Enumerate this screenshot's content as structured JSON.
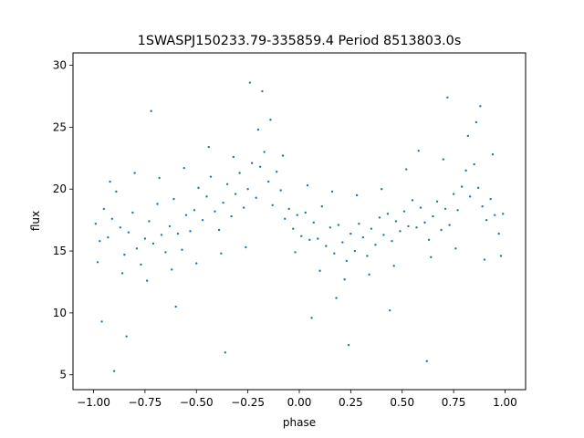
{
  "chart_data": {
    "type": "scatter",
    "title": "1SWASPJ150233.79-335859.4 Period 8513803.0s",
    "xlabel": "phase",
    "ylabel": "flux",
    "xlim": [
      -1.1,
      1.1
    ],
    "ylim": [
      3.8,
      31.0
    ],
    "xticks": [
      -1.0,
      -0.75,
      -0.5,
      -0.25,
      0.0,
      0.25,
      0.5,
      0.75,
      1.0
    ],
    "xtick_labels": [
      "−1.00",
      "−0.75",
      "−0.50",
      "−0.25",
      "0.00",
      "0.25",
      "0.50",
      "0.75",
      "1.00"
    ],
    "yticks": [
      5,
      10,
      15,
      20,
      25,
      30
    ],
    "ytick_labels": [
      "5",
      "10",
      "15",
      "20",
      "25",
      "30"
    ],
    "grid": false,
    "marker_color": "#1f77b4",
    "series": [
      {
        "points": [
          [
            -0.99,
            17.2
          ],
          [
            -0.97,
            15.8
          ],
          [
            -0.95,
            18.4
          ],
          [
            -0.93,
            16.1
          ],
          [
            -0.91,
            17.6
          ],
          [
            -0.89,
            19.8
          ],
          [
            -0.87,
            16.9
          ],
          [
            -0.85,
            14.7
          ],
          [
            -0.83,
            16.5
          ],
          [
            -0.81,
            18.1
          ],
          [
            -0.79,
            15.2
          ],
          [
            -0.77,
            13.9
          ],
          [
            -0.75,
            16.0
          ],
          [
            -0.73,
            17.4
          ],
          [
            -0.71,
            15.6
          ],
          [
            -0.69,
            18.8
          ],
          [
            -0.67,
            16.3
          ],
          [
            -0.65,
            14.9
          ],
          [
            -0.63,
            17.0
          ],
          [
            -0.61,
            19.2
          ],
          [
            -0.59,
            16.4
          ],
          [
            -0.57,
            15.1
          ],
          [
            -0.55,
            17.9
          ],
          [
            -0.53,
            16.6
          ],
          [
            -0.51,
            18.3
          ],
          [
            -0.49,
            20.1
          ],
          [
            -0.47,
            17.5
          ],
          [
            -0.45,
            19.4
          ],
          [
            -0.43,
            21.0
          ],
          [
            -0.41,
            18.2
          ],
          [
            -0.39,
            16.7
          ],
          [
            -0.37,
            18.9
          ],
          [
            -0.35,
            20.4
          ],
          [
            -0.33,
            17.8
          ],
          [
            -0.31,
            19.6
          ],
          [
            -0.29,
            21.3
          ],
          [
            -0.27,
            18.5
          ],
          [
            -0.25,
            20.0
          ],
          [
            -0.23,
            22.1
          ],
          [
            -0.21,
            19.3
          ],
          [
            -0.19,
            21.8
          ],
          [
            -0.17,
            23.0
          ],
          [
            -0.15,
            20.6
          ],
          [
            -0.13,
            18.7
          ],
          [
            -0.11,
            21.4
          ],
          [
            -0.09,
            19.9
          ],
          [
            -0.07,
            17.6
          ],
          [
            -0.05,
            18.4
          ],
          [
            -0.03,
            16.8
          ],
          [
            -0.01,
            17.9
          ],
          [
            0.01,
            16.2
          ],
          [
            0.03,
            18.1
          ],
          [
            0.05,
            15.9
          ],
          [
            0.07,
            17.3
          ],
          [
            0.09,
            16.0
          ],
          [
            0.11,
            18.6
          ],
          [
            0.13,
            15.4
          ],
          [
            0.15,
            16.9
          ],
          [
            0.17,
            14.8
          ],
          [
            0.19,
            17.1
          ],
          [
            0.21,
            15.7
          ],
          [
            0.23,
            14.2
          ],
          [
            0.25,
            16.4
          ],
          [
            0.27,
            15.0
          ],
          [
            0.29,
            17.2
          ],
          [
            0.31,
            16.1
          ],
          [
            0.33,
            14.6
          ],
          [
            0.35,
            16.8
          ],
          [
            0.37,
            15.5
          ],
          [
            0.39,
            17.7
          ],
          [
            0.41,
            16.3
          ],
          [
            0.43,
            18.0
          ],
          [
            0.45,
            15.8
          ],
          [
            0.47,
            17.4
          ],
          [
            0.49,
            16.6
          ],
          [
            0.51,
            18.2
          ],
          [
            0.53,
            17.0
          ],
          [
            0.55,
            19.1
          ],
          [
            0.57,
            16.9
          ],
          [
            0.59,
            18.5
          ],
          [
            0.61,
            17.3
          ],
          [
            0.63,
            15.9
          ],
          [
            0.65,
            17.8
          ],
          [
            0.67,
            19.0
          ],
          [
            0.69,
            16.7
          ],
          [
            0.71,
            18.4
          ],
          [
            0.73,
            17.1
          ],
          [
            0.75,
            19.6
          ],
          [
            0.77,
            18.3
          ],
          [
            0.79,
            20.2
          ],
          [
            0.81,
            21.5
          ],
          [
            0.83,
            19.4
          ],
          [
            0.85,
            22.0
          ],
          [
            0.87,
            20.1
          ],
          [
            0.89,
            18.6
          ],
          [
            0.91,
            17.5
          ],
          [
            0.93,
            19.2
          ],
          [
            0.95,
            17.9
          ],
          [
            0.97,
            16.4
          ],
          [
            0.99,
            18.0
          ],
          [
            -0.98,
            14.1
          ],
          [
            -0.92,
            20.6
          ],
          [
            -0.86,
            13.2
          ],
          [
            -0.8,
            21.3
          ],
          [
            -0.74,
            12.6
          ],
          [
            -0.68,
            20.9
          ],
          [
            -0.62,
            13.5
          ],
          [
            -0.56,
            21.7
          ],
          [
            -0.5,
            14.0
          ],
          [
            -0.44,
            23.4
          ],
          [
            -0.38,
            14.8
          ],
          [
            -0.32,
            22.6
          ],
          [
            -0.26,
            15.3
          ],
          [
            -0.2,
            24.8
          ],
          [
            -0.14,
            25.6
          ],
          [
            -0.08,
            22.7
          ],
          [
            -0.02,
            14.9
          ],
          [
            0.04,
            20.3
          ],
          [
            0.1,
            13.4
          ],
          [
            0.16,
            19.8
          ],
          [
            0.22,
            12.7
          ],
          [
            0.28,
            19.5
          ],
          [
            0.34,
            13.1
          ],
          [
            0.4,
            20.0
          ],
          [
            0.46,
            13.8
          ],
          [
            0.52,
            21.6
          ],
          [
            0.58,
            23.1
          ],
          [
            0.64,
            14.5
          ],
          [
            0.7,
            22.4
          ],
          [
            0.76,
            15.2
          ],
          [
            0.82,
            24.3
          ],
          [
            0.86,
            25.4
          ],
          [
            0.9,
            14.3
          ],
          [
            0.94,
            22.8
          ],
          [
            0.98,
            14.6
          ],
          [
            -0.96,
            9.3
          ],
          [
            -0.84,
            8.1
          ],
          [
            -0.6,
            10.5
          ],
          [
            -0.36,
            6.8
          ],
          [
            -0.18,
            27.9
          ],
          [
            0.06,
            9.6
          ],
          [
            0.24,
            7.4
          ],
          [
            0.44,
            10.2
          ],
          [
            0.62,
            6.1
          ],
          [
            0.88,
            26.7
          ],
          [
            -0.72,
            26.3
          ],
          [
            -0.24,
            28.6
          ],
          [
            0.18,
            11.2
          ],
          [
            0.72,
            27.4
          ],
          [
            -0.9,
            5.3
          ]
        ]
      }
    ]
  }
}
